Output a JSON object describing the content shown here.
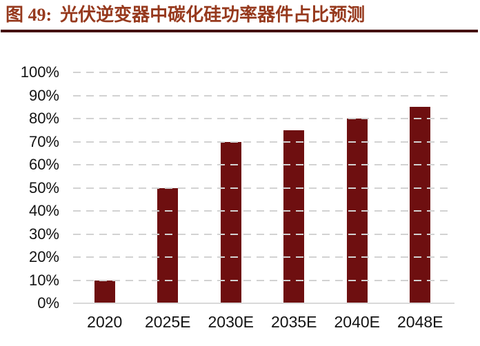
{
  "figure": {
    "label": "图 49:",
    "title": "光伏逆变器中碳化硅功率器件占比预测"
  },
  "colors": {
    "title_text": "#96391d",
    "title_rule": "#451212",
    "bar": "#6e0f10",
    "gridline": "#d2d2d2",
    "axis_line": "#d9d9d9",
    "tick_text": "#131313",
    "background": "#ffffff"
  },
  "chart_data": {
    "type": "bar",
    "title": "光伏逆变器中碳化硅功率器件占比预测",
    "categories": [
      "2020",
      "2025E",
      "2030E",
      "2035E",
      "2040E",
      "2048E"
    ],
    "values": [
      10,
      50,
      70,
      75,
      80,
      85
    ],
    "unit": "%",
    "xlabel": "",
    "ylabel": "",
    "ylim": [
      0,
      100
    ],
    "yticks": [
      0,
      10,
      20,
      30,
      40,
      50,
      60,
      70,
      80,
      90,
      100
    ],
    "grid": "horizontal-dashed",
    "legend": "none",
    "bar_color": "#6e0f10"
  }
}
